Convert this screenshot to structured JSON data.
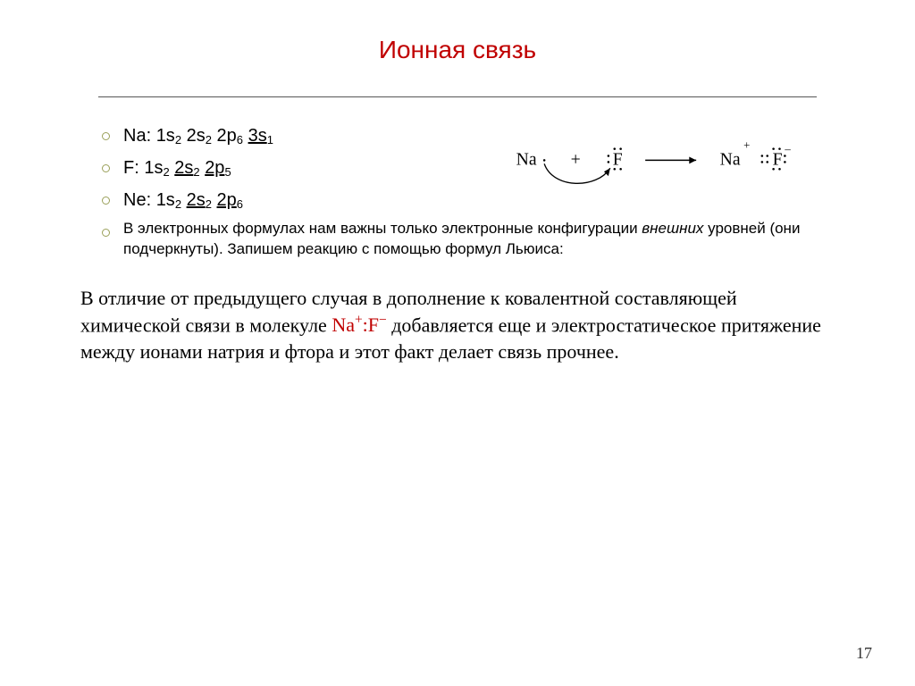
{
  "title": "Ионная связь",
  "bullets": {
    "na": {
      "label": "Na",
      "cfg": [
        [
          "1s",
          "2"
        ],
        [
          "2s",
          "2"
        ],
        [
          "2p",
          "6"
        ],
        [
          "3s",
          "1"
        ]
      ],
      "underline_from": 3
    },
    "f": {
      "label": "F",
      "cfg": [
        [
          "1s",
          "2"
        ],
        [
          "2s",
          "2"
        ],
        [
          "2p",
          "5"
        ]
      ],
      "underline_from": 1
    },
    "ne": {
      "label": "Ne",
      "cfg": [
        [
          "1s",
          "2"
        ],
        [
          "2s",
          "2"
        ],
        [
          "2p",
          "6"
        ]
      ],
      "underline_from": 1
    },
    "note_pre": "В электронных формулах нам важны только электронные конфигурации ",
    "note_em": "внешних",
    "note_post": " уровней (они подчеркнуты). Запишем реакцию с помощью формул Льюиса:"
  },
  "equation": {
    "na": "Na",
    "f": "F",
    "arrow_len": 58,
    "plus_sign": "+",
    "charge_plus": "+",
    "charge_minus": "_",
    "curve_color": "#000000"
  },
  "paragraph": {
    "t1": "В отличие от предыдущего случая в дополнение к ковалентной составляющей химической связи в молекуле ",
    "mol_na": "Na",
    "mol_sup1": "+",
    "mol_colon": ":",
    "mol_f": "F",
    "mol_sup2": "−",
    "t2": " добавляется еще и электростатическое притяжение между ионами натрия и фтора и этот факт делает связь прочнее."
  },
  "page_number": "17",
  "colors": {
    "accent": "#c00000",
    "bullet_ring": "#9aa05a",
    "rule": "#555555",
    "text": "#000000",
    "bg": "#ffffff"
  },
  "fonts": {
    "title_size": 28,
    "bullet_size": 20,
    "bullet_small_size": 17,
    "para_size": 22,
    "pagenum_size": 18
  }
}
